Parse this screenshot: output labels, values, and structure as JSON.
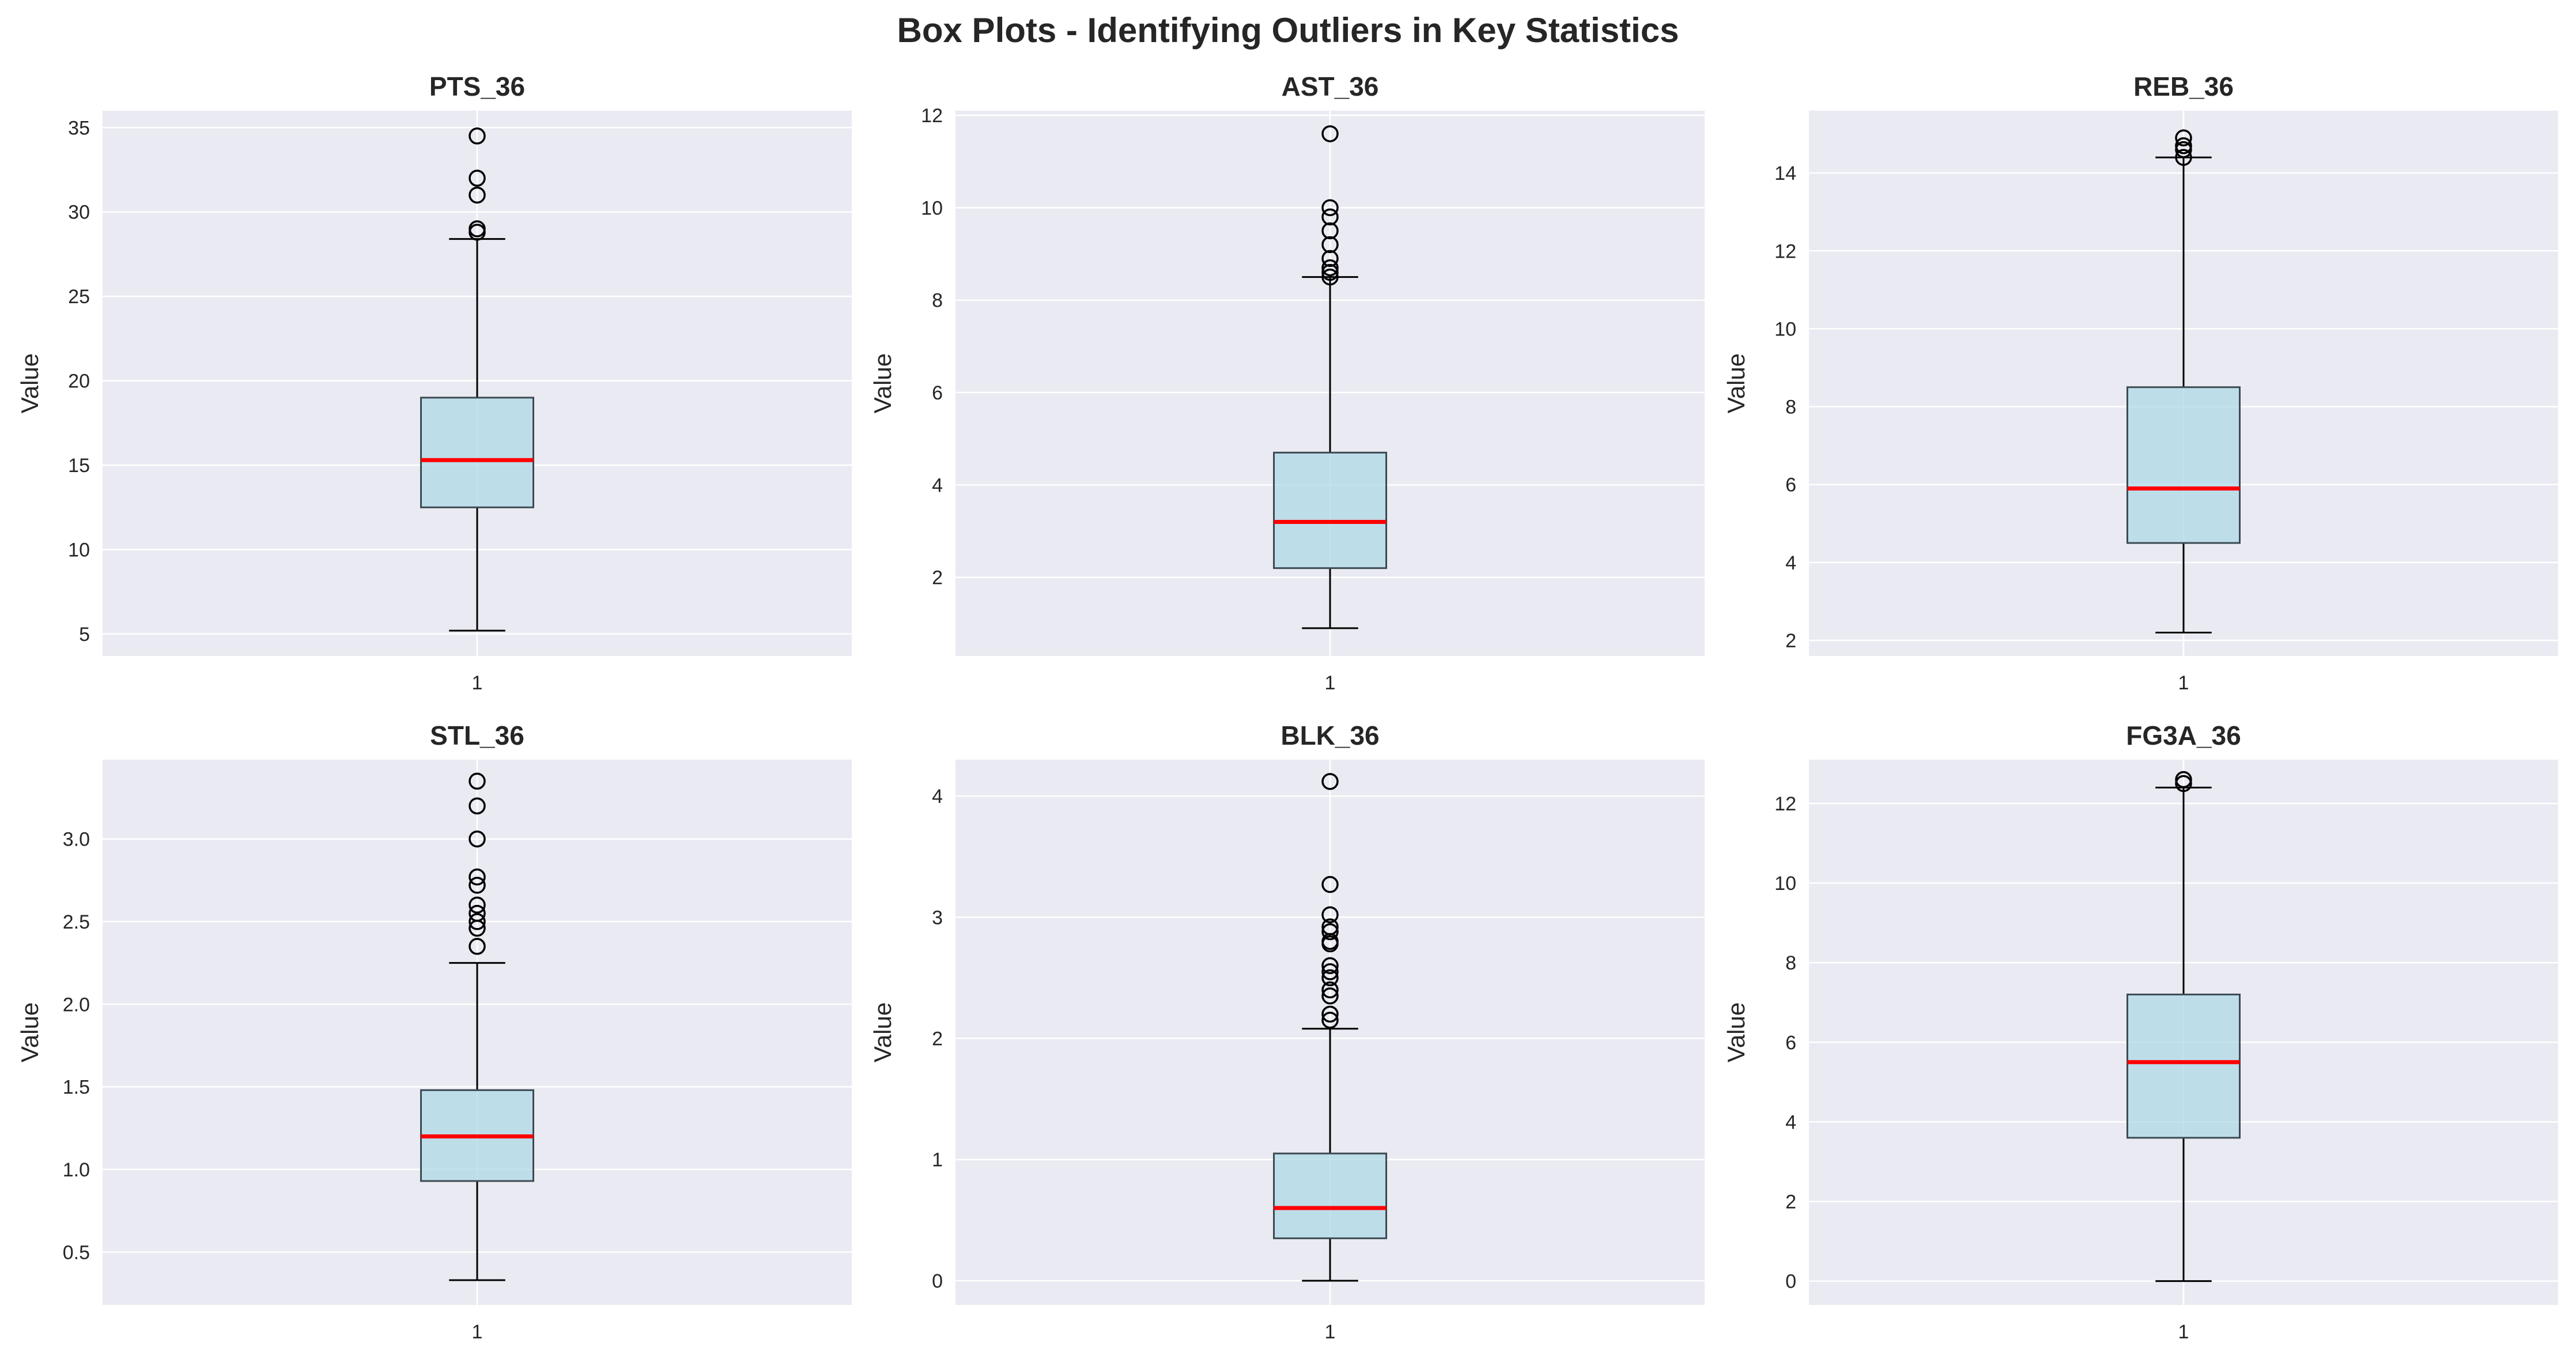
{
  "figure": {
    "title": "Box Plots - Identifying Outliers in Key Statistics",
    "colors": {
      "panel_background": "#eaeaf2",
      "grid": "#ffffff",
      "box_fill": "#add8e6",
      "box_edge": "#3c4a52",
      "median": "#ff0000",
      "whisker": "#000000",
      "outlier_edge": "#000000"
    }
  },
  "chart_data": [
    {
      "type": "box",
      "title": "PTS_36",
      "ylabel": "Value",
      "xticks": [
        "1"
      ],
      "ylim": [
        3.7,
        36.0
      ],
      "yticks": [
        5,
        10,
        15,
        20,
        25,
        30,
        35
      ],
      "grid": true,
      "box": {
        "whislo": 5.2,
        "q1": 12.5,
        "median": 15.3,
        "q3": 19.0,
        "whishi": 28.4
      },
      "outliers": [
        28.8,
        29.0,
        31.0,
        32.0,
        34.5
      ]
    },
    {
      "type": "box",
      "title": "AST_36",
      "ylabel": "Value",
      "xticks": [
        "1"
      ],
      "ylim": [
        0.3,
        12.1
      ],
      "yticks": [
        2,
        4,
        6,
        8,
        10,
        12
      ],
      "grid": true,
      "box": {
        "whislo": 0.9,
        "q1": 2.2,
        "median": 3.2,
        "q3": 4.7,
        "whishi": 8.5
      },
      "outliers": [
        8.5,
        8.6,
        8.7,
        8.9,
        9.2,
        9.5,
        9.8,
        10.0,
        11.6
      ]
    },
    {
      "type": "box",
      "title": "REB_36",
      "ylabel": "Value",
      "xticks": [
        "1"
      ],
      "ylim": [
        1.6,
        15.6
      ],
      "yticks": [
        2,
        4,
        6,
        8,
        10,
        12,
        14
      ],
      "grid": true,
      "box": {
        "whislo": 2.2,
        "q1": 4.5,
        "median": 5.9,
        "q3": 8.5,
        "whishi": 14.4
      },
      "outliers": [
        14.4,
        14.6,
        14.7,
        14.9
      ]
    },
    {
      "type": "box",
      "title": "STL_36",
      "ylabel": "Value",
      "xticks": [
        "1"
      ],
      "ylim": [
        0.18,
        3.48
      ],
      "yticks": [
        0.5,
        1.0,
        1.5,
        2.0,
        2.5,
        3.0
      ],
      "ytick_labels": [
        "0.5",
        "1.0",
        "1.5",
        "2.0",
        "2.5",
        "3.0"
      ],
      "grid": true,
      "box": {
        "whislo": 0.33,
        "q1": 0.93,
        "median": 1.2,
        "q3": 1.48,
        "whishi": 2.25
      },
      "outliers": [
        2.35,
        2.46,
        2.5,
        2.55,
        2.6,
        2.72,
        2.77,
        3.0,
        3.2,
        3.35
      ]
    },
    {
      "type": "box",
      "title": "BLK_36",
      "ylabel": "Value",
      "xticks": [
        "1"
      ],
      "ylim": [
        -0.2,
        4.3
      ],
      "yticks": [
        0,
        1,
        2,
        3,
        4
      ],
      "grid": true,
      "box": {
        "whislo": 0.0,
        "q1": 0.35,
        "median": 0.6,
        "q3": 1.05,
        "whishi": 2.08
      },
      "outliers": [
        2.15,
        2.2,
        2.35,
        2.4,
        2.5,
        2.55,
        2.6,
        2.78,
        2.8,
        2.88,
        2.92,
        3.02,
        3.27,
        4.12
      ]
    },
    {
      "type": "box",
      "title": "FG3A_36",
      "ylabel": "Value",
      "xticks": [
        "1"
      ],
      "ylim": [
        -0.6,
        13.1
      ],
      "yticks": [
        0,
        2,
        4,
        6,
        8,
        10,
        12
      ],
      "grid": true,
      "box": {
        "whislo": 0.0,
        "q1": 3.6,
        "median": 5.5,
        "q3": 7.2,
        "whishi": 12.4
      },
      "outliers": [
        12.5,
        12.6
      ]
    }
  ]
}
